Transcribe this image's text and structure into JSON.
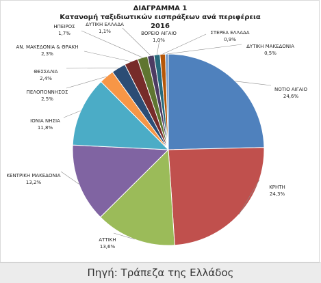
{
  "chart_data": {
    "type": "pie",
    "title": [
      "ΔΙΑΓΡΑΜΜΑ 1",
      "Κατανομή ταξιδιωτικών εισπράξεων ανά περιφέρεια",
      "2016"
    ],
    "slices": [
      {
        "name": "ΝΟΤΙΟ ΑΙΓΑΙΟ",
        "value": 24.6,
        "label": "24,6%",
        "color": "#4f81bd"
      },
      {
        "name": "ΚΡΗΤΗ",
        "value": 24.3,
        "label": "24,3%",
        "color": "#c0504d"
      },
      {
        "name": "ΑΤΤΙΚΗ",
        "value": 13.6,
        "label": "13,6%",
        "color": "#9bbb59"
      },
      {
        "name": "ΚΕΝΤΡΙΚΗ ΜΑΚΕΔΟΝΙΑ",
        "value": 13.2,
        "label": "13,2%",
        "color": "#8064a2"
      },
      {
        "name": "ΙΟΝΙΑ ΝΗΣΙΑ",
        "value": 11.8,
        "label": "11,8%",
        "color": "#4bacc6"
      },
      {
        "name": "ΠΕΛΟΠΟΝΝΗΣΟΣ",
        "value": 2.5,
        "label": "2,5%",
        "color": "#f79646"
      },
      {
        "name": "ΘΕΣΣΑΛΙΑ",
        "value": 2.4,
        "label": "2,4%",
        "color": "#2c4d75"
      },
      {
        "name": "ΑΝ. ΜΑΚΕΔΟΝΙΑ & ΘΡΑΚΗ",
        "value": 2.3,
        "label": "2,3%",
        "color": "#772c2a"
      },
      {
        "name": "ΗΠΕΙΡΟΣ",
        "value": 1.7,
        "label": "1,7%",
        "color": "#5f7530"
      },
      {
        "name": "ΔΥΤΙΚΗ ΕΛΛΑΔΑ",
        "value": 1.1,
        "label": "1,1%",
        "color": "#4d3b62"
      },
      {
        "name": "ΒΟΡΕΙΟ ΑΙΓΑΙΟ",
        "value": 1.0,
        "label": "1,0%",
        "color": "#276a7c"
      },
      {
        "name": "ΣΤΕΡΕΑ ΕΛΛΑΔΑ",
        "value": 0.9,
        "label": "0,9%",
        "color": "#b65708"
      },
      {
        "name": "ΔΥΤΙΚΗ ΜΑΚΕΔΟΝΙΑ",
        "value": 0.5,
        "label": "0,5%",
        "color": "#729aca"
      }
    ],
    "legend": "none",
    "data_labels": "outside with leader lines"
  },
  "source": {
    "text": "Πηγή: Τράπεζα της Ελλάδος"
  }
}
